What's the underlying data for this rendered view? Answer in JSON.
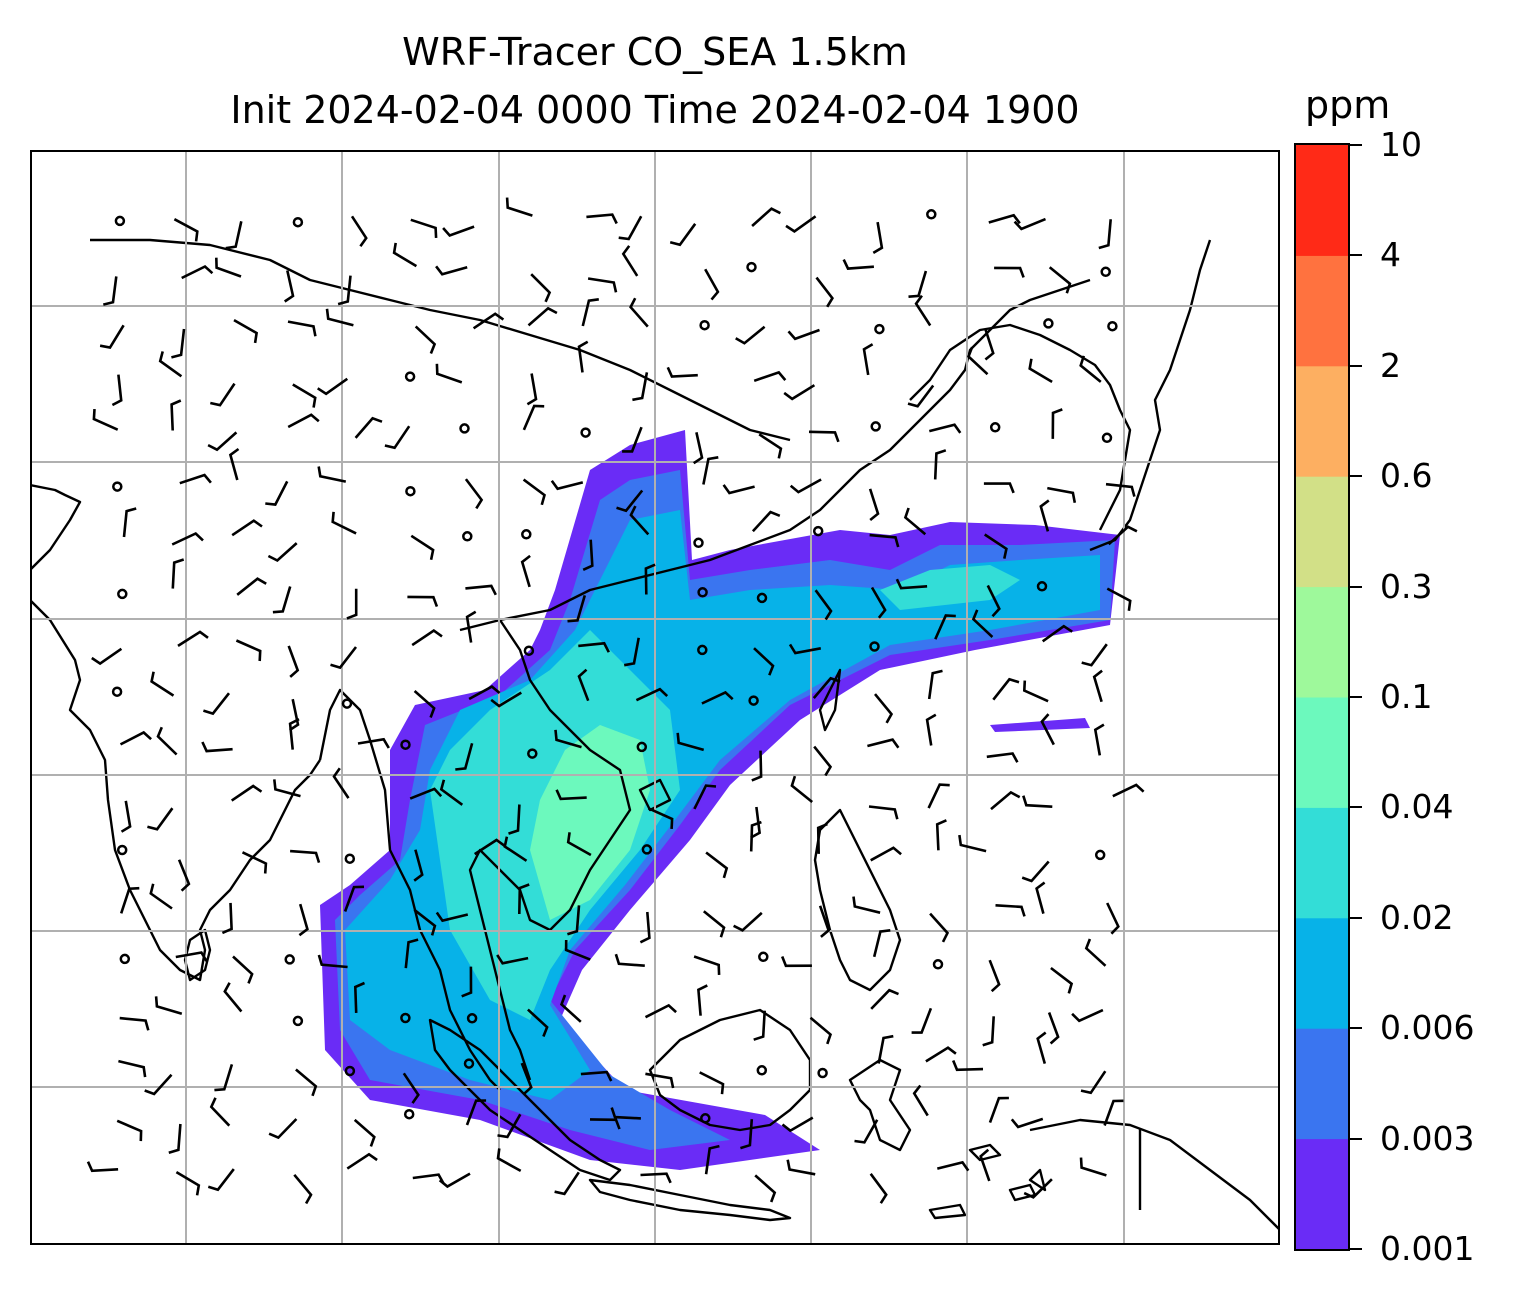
{
  "figure": {
    "title_line1": "WRF-Tracer CO_SEA 1.5km",
    "title_line2": "Init 2024-02-04 0000 Time 2024-02-04 1900"
  },
  "colorbar": {
    "units": "ppm",
    "levels": [
      "0.001",
      "0.003",
      "0.006",
      "0.02",
      "0.04",
      "0.1",
      "0.3",
      "0.6",
      "2",
      "4",
      "10"
    ],
    "colors": [
      "#6a2cf6",
      "#3a75f0",
      "#07b2e8",
      "#33ddd7",
      "#6cf9bd",
      "#9ef99b",
      "#d2e087",
      "#fdaf61",
      "#ff723f",
      "#ff2a17"
    ]
  },
  "map": {
    "colors": {
      "land": "#ffffff",
      "coastline": "#000000",
      "grid": "#b0b0b0",
      "wind_barb": "#000000"
    },
    "layers": [
      "coastlines",
      "gridlines",
      "tracer-concentration-shading",
      "wind-barbs"
    ]
  },
  "chart_data": {
    "type": "heatmap",
    "title": "WRF-Tracer CO_SEA 1.5km",
    "subtitle": "Init 2024-02-04 0000 Time 2024-02-04 1900",
    "variable": "CO_SEA",
    "level": "1.5km",
    "colorbar_label": "ppm",
    "colorbar_levels": [
      0.001,
      0.003,
      0.006,
      0.02,
      0.04,
      0.1,
      0.3,
      0.6,
      2,
      4,
      10
    ],
    "grid": true,
    "legend": "colorbar right"
  }
}
